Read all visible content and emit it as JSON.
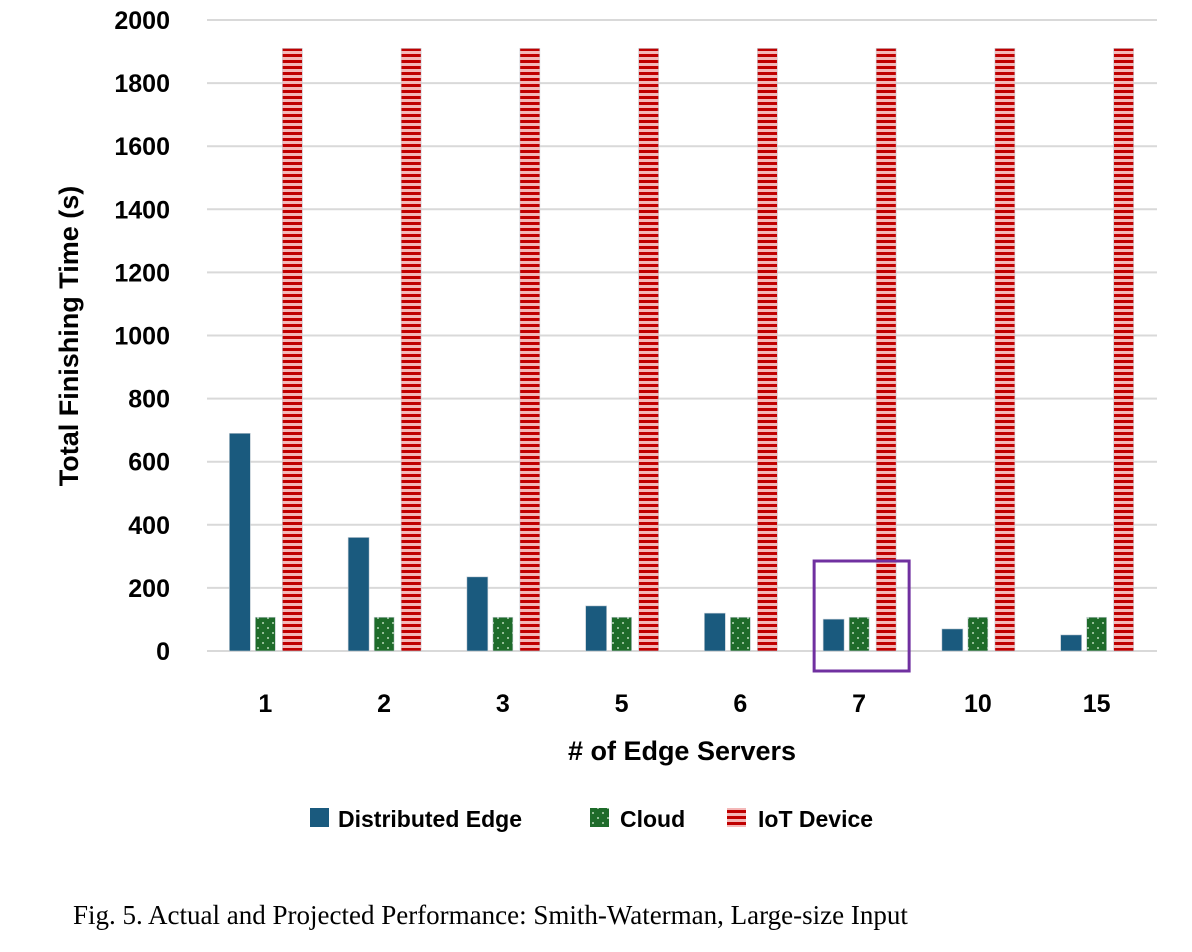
{
  "chart_data": {
    "type": "bar",
    "title": "",
    "xlabel": "# of Edge Servers",
    "ylabel": "Total Finishing Time (s)",
    "ylim": [
      0,
      2000
    ],
    "yticks": [
      "0",
      "200",
      "400",
      "600",
      "800",
      "1000",
      "1200",
      "1400",
      "1600",
      "1800",
      "2000"
    ],
    "grid": true,
    "legend_position": "bottom",
    "categories": [
      "1",
      "2",
      "3",
      "5",
      "6",
      "7",
      "10",
      "15"
    ],
    "series": [
      {
        "name": "Distributed Edge",
        "color": "#1a5a7e",
        "pattern": "solid",
        "values": [
          690,
          360,
          235,
          143,
          120,
          101,
          70,
          51
        ]
      },
      {
        "name": "Cloud",
        "color": "#1e6b2a",
        "pattern": "dotted",
        "values": [
          107,
          107,
          107,
          107,
          107,
          107,
          107,
          107
        ]
      },
      {
        "name": "IoT Device",
        "color": "#c00000",
        "pattern": "horizontal-stripes",
        "values": [
          1910,
          1910,
          1910,
          1910,
          1910,
          1910,
          1910,
          1910
        ]
      }
    ],
    "highlight": {
      "category": "7",
      "color": "#7030a0"
    }
  },
  "caption": "Fig. 5.  Actual and Projected Performance: Smith-Waterman, Large-size Input"
}
